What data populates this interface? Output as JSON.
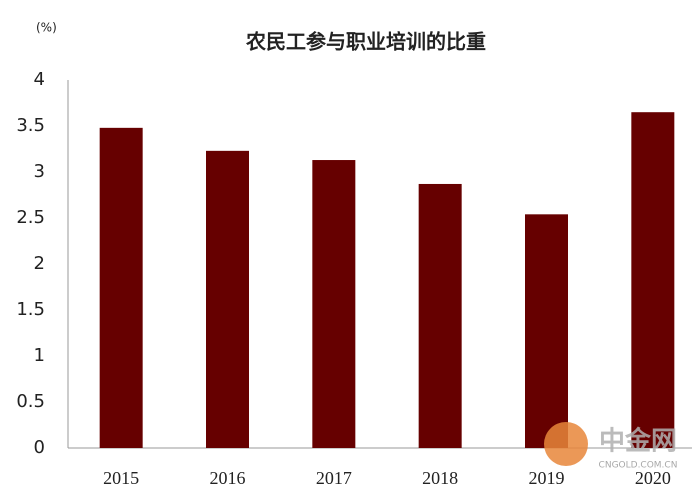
{
  "chart_data": {
    "type": "bar",
    "title": "农民工参与职业培训的比重",
    "unit": "(%)",
    "categories": [
      "2015",
      "2016",
      "2017",
      "2018",
      "2019",
      "2020"
    ],
    "values": [
      3.48,
      3.23,
      3.13,
      2.87,
      2.54,
      3.65
    ],
    "color": "#660000",
    "ylim": [
      0,
      4
    ],
    "yticks": [
      0,
      0.5,
      1,
      1.5,
      2,
      2.5,
      3,
      3.5,
      4
    ],
    "grid": false,
    "watermark": [
      "中金网",
      "CNGOLD.COM.CN"
    ]
  }
}
